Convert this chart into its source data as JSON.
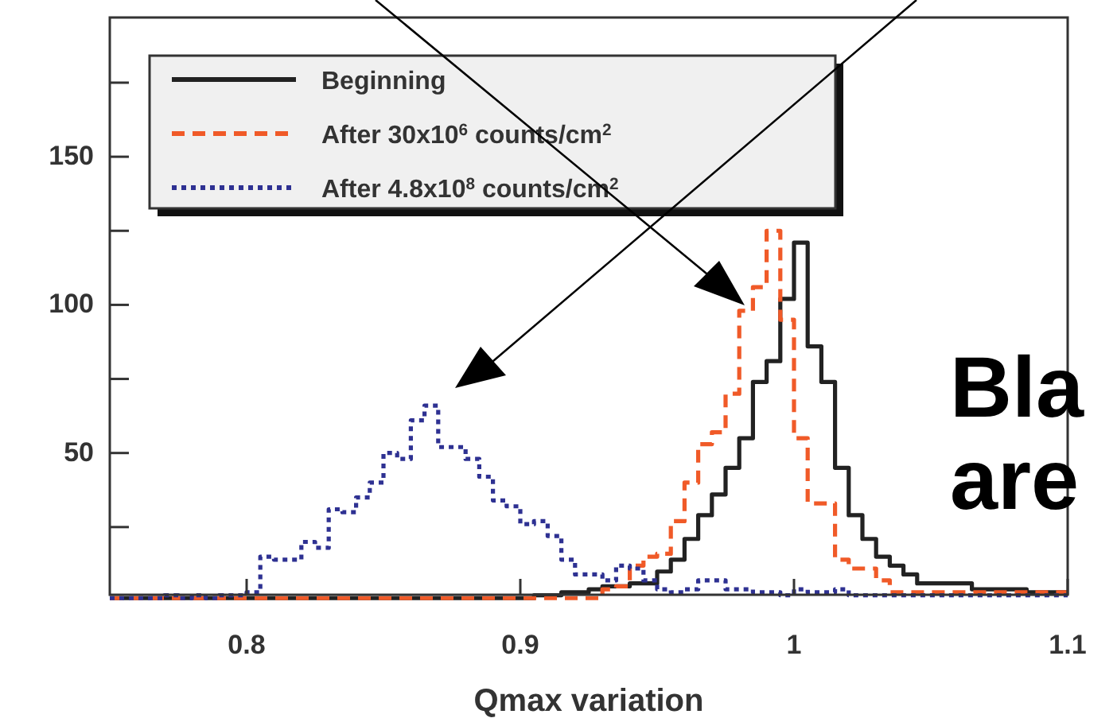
{
  "chart_data": {
    "type": "histogram",
    "xlabel": "Qmax variation",
    "bins": [
      0.75,
      0.755,
      0.76,
      0.765,
      0.77,
      0.775,
      0.78,
      0.785,
      0.79,
      0.795,
      0.8,
      0.805,
      0.81,
      0.815,
      0.82,
      0.825,
      0.83,
      0.835,
      0.84,
      0.845,
      0.85,
      0.855,
      0.86,
      0.865,
      0.87,
      0.875,
      0.88,
      0.885,
      0.89,
      0.895,
      0.9,
      0.905,
      0.91,
      0.915,
      0.92,
      0.925,
      0.93,
      0.935,
      0.94,
      0.945,
      0.95,
      0.955,
      0.96,
      0.965,
      0.97,
      0.975,
      0.98,
      0.985,
      0.99,
      0.995,
      1,
      1.005,
      1.01,
      1.015,
      1.02,
      1.025,
      1.03,
      1.035,
      1.04,
      1.045,
      1.05,
      1.055,
      1.06,
      1.065,
      1.07,
      1.075,
      1.08,
      1.085,
      1.09,
      1.095,
      1.1
    ],
    "series": [
      {
        "name": "Beginning",
        "color": "#222222",
        "line_style": "solid",
        "values": [
          1,
          1,
          1,
          1,
          1,
          1,
          1,
          1,
          1,
          1,
          1,
          1,
          1,
          1,
          1,
          1,
          1,
          1,
          1,
          1,
          1,
          1,
          1,
          1,
          1,
          1,
          1,
          1,
          1,
          1,
          1,
          2,
          2,
          3,
          3,
          4,
          5,
          5,
          6,
          6,
          10,
          14,
          21,
          29,
          36,
          45,
          55,
          74,
          81,
          102,
          121,
          86,
          74,
          45,
          29,
          21,
          15,
          12,
          9,
          6,
          6,
          6,
          6,
          4,
          4,
          4,
          4,
          3,
          3,
          3
        ]
      },
      {
        "name": "After 30x10$^{6}$ counts/cm$^{2}$",
        "color": "#f05a28",
        "line_style": "dashed",
        "values": [
          1,
          1,
          1,
          1,
          1,
          1,
          1,
          1,
          1,
          1,
          1,
          1,
          1,
          1,
          1,
          1,
          1,
          1,
          1,
          1,
          1,
          1,
          1,
          1,
          1,
          1,
          1,
          1,
          1,
          1,
          1,
          1,
          1,
          1,
          1,
          1,
          4,
          5,
          12,
          15,
          16,
          27,
          40,
          53,
          57,
          70,
          98,
          106,
          125,
          95,
          55,
          33,
          33,
          14,
          11,
          11,
          7,
          3,
          3,
          3,
          3,
          3,
          3,
          3,
          3,
          3,
          3,
          3,
          3,
          3
        ]
      },
      {
        "name": "After 4.8x10$^{8}$ counts/cm$^{2}$",
        "color": "#2e3192",
        "line_style": "dotted",
        "values": [
          1,
          1,
          1,
          1,
          2,
          1,
          2,
          1,
          2,
          2,
          3,
          15,
          14,
          14,
          20,
          18,
          31,
          30,
          35,
          40,
          50,
          48,
          61,
          66,
          52,
          52,
          48,
          42,
          34,
          32,
          26,
          27,
          22,
          14,
          9,
          9,
          7,
          12,
          11,
          7,
          4,
          3,
          4,
          7,
          7,
          4,
          4,
          3,
          3,
          2,
          4,
          3,
          3,
          4,
          2,
          2,
          2,
          2,
          2,
          2,
          2,
          2,
          2,
          2,
          2,
          2,
          2,
          2,
          2,
          2
        ]
      }
    ],
    "xlim": [
      0.75,
      1.1
    ],
    "ylim": [
      0,
      197
    ],
    "xticks": [
      0.8,
      0.9,
      {
        "value": 1,
        "label": "1"
      },
      1.1
    ],
    "yticks": [
      {
        "value": 25,
        "label": null
      },
      50,
      {
        "value": 75,
        "label": null
      },
      100,
      {
        "value": 125,
        "label": null
      },
      150,
      {
        "value": 175,
        "label": null
      }
    ],
    "legend": "top left",
    "grid": false,
    "annotations": [
      "Bla",
      "are"
    ]
  }
}
